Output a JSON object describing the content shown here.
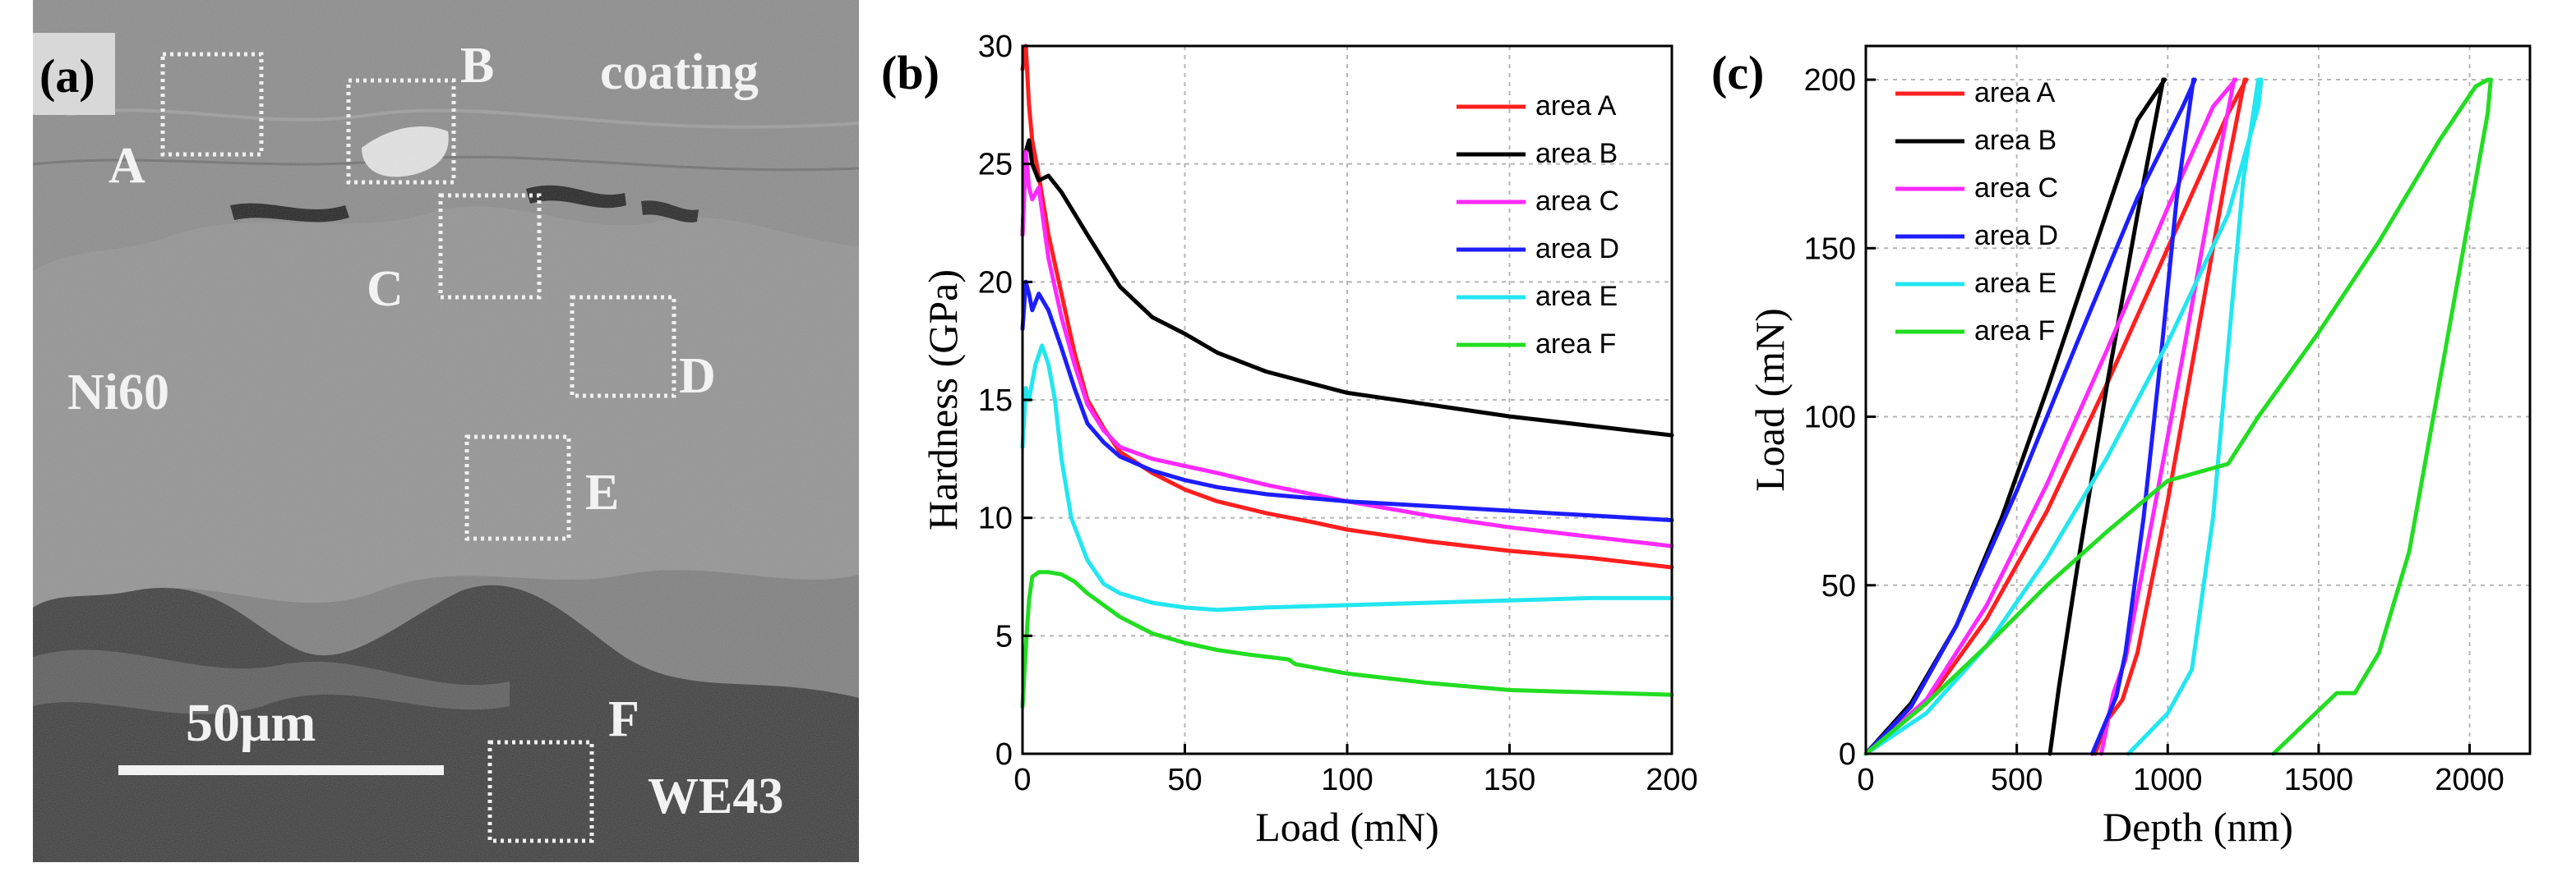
{
  "panels": {
    "a": {
      "letter": "(a)"
    },
    "b": {
      "letter": "(b)"
    },
    "c": {
      "letter": "(c)"
    }
  },
  "micrograph": {
    "labels": {
      "coating": "coating",
      "ni60": "Ni60",
      "we43": "WE43",
      "scale": "50μm",
      "A": "A",
      "B": "B",
      "C": "C",
      "D": "D",
      "E": "E",
      "F": "F"
    }
  },
  "colors": {
    "areaA": "#ff1f1f",
    "areaB": "#000000",
    "areaC": "#ff29ff",
    "areaD": "#1d1dff",
    "areaE": "#22e6f0",
    "areaF": "#22dd22"
  },
  "legend": [
    "area A",
    "area B",
    "area C",
    "area D",
    "area E",
    "area F"
  ],
  "chart_data": [
    {
      "type": "line",
      "panel": "b",
      "title": "",
      "xlabel": "Load (mN)",
      "ylabel": "Hardness (GPa)",
      "xlim": [
        0,
        200
      ],
      "ylim": [
        0,
        30
      ],
      "xticks": [
        0,
        50,
        100,
        150,
        200
      ],
      "yticks": [
        0,
        5,
        10,
        15,
        20,
        25,
        30
      ],
      "grid": true,
      "legend_position": "top-right",
      "series": [
        {
          "name": "area A",
          "x": [
            0,
            1,
            2,
            3,
            5,
            8,
            12,
            16,
            20,
            25,
            30,
            40,
            50,
            60,
            75,
            90,
            100,
            125,
            150,
            175,
            200
          ],
          "y": [
            29,
            30,
            27.5,
            26,
            24.5,
            22,
            19.5,
            17,
            15,
            13.8,
            12.8,
            11.9,
            11.2,
            10.7,
            10.2,
            9.8,
            9.5,
            9.0,
            8.6,
            8.3,
            7.9
          ]
        },
        {
          "name": "area B",
          "x": [
            0,
            1,
            2,
            3,
            5,
            8,
            12,
            20,
            30,
            40,
            50,
            60,
            75,
            100,
            125,
            150,
            175,
            200
          ],
          "y": [
            22,
            25.5,
            26,
            25,
            24.3,
            24.5,
            23.8,
            22,
            19.8,
            18.5,
            17.8,
            17,
            16.2,
            15.3,
            14.8,
            14.3,
            13.9,
            13.5
          ]
        },
        {
          "name": "area C",
          "x": [
            0,
            1,
            2,
            3,
            5,
            8,
            12,
            16,
            20,
            25,
            30,
            40,
            50,
            60,
            75,
            100,
            125,
            150,
            175,
            200
          ],
          "y": [
            22,
            25.5,
            24,
            23.5,
            24,
            21,
            18.5,
            16.5,
            14.8,
            13.7,
            13,
            12.5,
            12.2,
            11.9,
            11.4,
            10.7,
            10.1,
            9.6,
            9.2,
            8.8
          ]
        },
        {
          "name": "area D",
          "x": [
            0,
            1,
            2,
            3,
            5,
            8,
            12,
            16,
            20,
            25,
            30,
            40,
            50,
            60,
            75,
            100,
            125,
            150,
            175,
            200
          ],
          "y": [
            18,
            20,
            19.5,
            18.8,
            19.5,
            18.8,
            17.2,
            15.5,
            14,
            13.2,
            12.6,
            12.0,
            11.6,
            11.3,
            11.0,
            10.7,
            10.5,
            10.3,
            10.1,
            9.9
          ]
        },
        {
          "name": "area E",
          "x": [
            0,
            1,
            2,
            4,
            6,
            8,
            10,
            12,
            15,
            20,
            25,
            30,
            40,
            50,
            60,
            75,
            100,
            125,
            150,
            175,
            200
          ],
          "y": [
            13,
            15.5,
            15,
            16.5,
            17.3,
            16.5,
            15,
            12.5,
            10,
            8.2,
            7.2,
            6.8,
            6.4,
            6.2,
            6.1,
            6.2,
            6.3,
            6.4,
            6.5,
            6.6,
            6.6
          ]
        },
        {
          "name": "area F",
          "x": [
            0,
            1,
            2,
            3,
            5,
            8,
            12,
            16,
            20,
            30,
            40,
            50,
            60,
            70,
            82,
            84,
            100,
            125,
            150,
            175,
            200
          ],
          "y": [
            2,
            4.5,
            6.5,
            7.5,
            7.7,
            7.7,
            7.6,
            7.3,
            6.8,
            5.8,
            5.1,
            4.7,
            4.4,
            4.2,
            4.0,
            3.8,
            3.4,
            3.0,
            2.7,
            2.6,
            2.5
          ]
        }
      ]
    },
    {
      "type": "line",
      "panel": "c",
      "title": "",
      "xlabel": "Depth (nm)",
      "ylabel": "Load (mN)",
      "xlim": [
        0,
        2200
      ],
      "ylim": [
        0,
        210
      ],
      "xticks": [
        0,
        500,
        1000,
        1500,
        2000
      ],
      "yticks": [
        0,
        50,
        100,
        150,
        200
      ],
      "grid": true,
      "legend_position": "top-left",
      "series": [
        {
          "name": "area A",
          "x": [
            0,
            200,
            400,
            600,
            800,
            1000,
            1200,
            1260,
            1255,
            1200,
            1100,
            1000,
            900,
            850,
            800,
            760
          ],
          "y": [
            0,
            15,
            40,
            72,
            110,
            150,
            190,
            200,
            200,
            175,
            125,
            75,
            30,
            16,
            10,
            0
          ]
        },
        {
          "name": "area B",
          "x": [
            0,
            150,
            300,
            450,
            600,
            750,
            900,
            990,
            985,
            900,
            800,
            700,
            640,
            610
          ],
          "y": [
            0,
            15,
            38,
            70,
            108,
            148,
            188,
            200,
            200,
            160,
            110,
            55,
            20,
            0
          ]
        },
        {
          "name": "area C",
          "x": [
            0,
            200,
            400,
            600,
            800,
            1000,
            1150,
            1225,
            1220,
            1150,
            1050,
            950,
            860,
            820,
            780
          ],
          "y": [
            0,
            16,
            44,
            80,
            120,
            162,
            192,
            200,
            200,
            168,
            118,
            70,
            28,
            18,
            0
          ]
        },
        {
          "name": "area D",
          "x": [
            0,
            150,
            300,
            500,
            700,
            900,
            1050,
            1090,
            1085,
            1030,
            980,
            920,
            860,
            830,
            750
          ],
          "y": [
            0,
            14,
            38,
            78,
            122,
            165,
            192,
            200,
            200,
            165,
            120,
            70,
            30,
            17,
            0
          ]
        },
        {
          "name": "area E",
          "x": [
            0,
            200,
            400,
            600,
            800,
            1000,
            1200,
            1300,
            1310,
            1300,
            1250,
            1200,
            1150,
            1080,
            1000,
            870
          ],
          "y": [
            0,
            12,
            32,
            58,
            88,
            122,
            160,
            192,
            200,
            200,
            170,
            120,
            70,
            25,
            12,
            0
          ]
        },
        {
          "name": "area F",
          "x": [
            0,
            200,
            400,
            600,
            800,
            1000,
            1200,
            1300,
            1500,
            1700,
            1900,
            2020,
            2060,
            2070,
            2060,
            2000,
            1900,
            1800,
            1700,
            1620,
            1560,
            1350
          ],
          "y": [
            0,
            15,
            32,
            50,
            66,
            81,
            86,
            100,
            125,
            152,
            182,
            198,
            200,
            200,
            190,
            160,
            110,
            60,
            30,
            18,
            18,
            0
          ]
        }
      ]
    }
  ]
}
